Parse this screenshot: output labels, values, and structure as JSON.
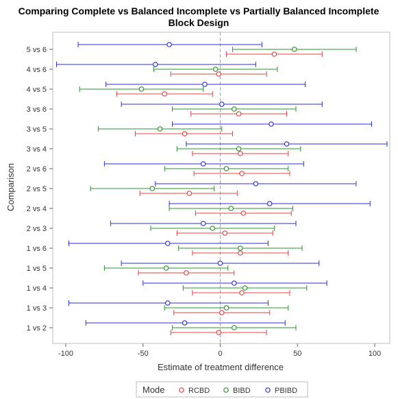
{
  "chart_data": {
    "type": "scatter",
    "title_line1": "Comparing Complete vs Balanced Incomplete vs Partially Balanced Incomplete",
    "title_line2": "Block Design",
    "xlabel": "Estimate of treatment difference",
    "ylabel": "Comparison",
    "xlim": [
      -110,
      110
    ],
    "x_ticks": [
      -100,
      -50,
      0,
      50,
      100
    ],
    "reference_line": 0,
    "categories": [
      "1 vs 2",
      "1 vs 3",
      "1 vs 4",
      "1 vs 5",
      "1 vs 6",
      "2 vs 3",
      "2 vs 4",
      "2 vs 5",
      "2 vs 6",
      "3 vs 4",
      "3 vs 5",
      "3 vs 6",
      "4 vs 5",
      "4 vs 6",
      "5 vs 6"
    ],
    "legend": {
      "title": "Mode",
      "placement": "bottom"
    },
    "series": [
      {
        "name": "RCBD",
        "color": "#e8403f",
        "estimate": [
          -1,
          1,
          14,
          -22,
          13,
          3,
          15,
          -20,
          14,
          13,
          -23,
          12,
          -36,
          -1,
          35
        ],
        "lower": [
          -32,
          -30,
          -18,
          -53,
          -18,
          -28,
          -16,
          -52,
          -17,
          -18,
          -55,
          -19,
          -67,
          -32,
          4
        ],
        "upper": [
          30,
          32,
          45,
          9,
          44,
          34,
          46,
          11,
          45,
          44,
          8,
          43,
          -5,
          30,
          66
        ]
      },
      {
        "name": "BIBD",
        "color": "#27932a",
        "estimate": [
          9,
          4,
          16,
          -35,
          13,
          -5,
          7,
          -44,
          4,
          12,
          -39,
          9,
          -51,
          -3,
          48
        ],
        "lower": [
          -31,
          -36,
          -24,
          -75,
          -27,
          -45,
          -33,
          -84,
          -36,
          -28,
          -79,
          -31,
          -91,
          -43,
          8
        ],
        "upper": [
          49,
          44,
          56,
          5,
          53,
          35,
          47,
          -4,
          44,
          52,
          1,
          49,
          -11,
          37,
          88
        ]
      },
      {
        "name": "PBIBD",
        "color": "#2a2ed8",
        "estimate": [
          -23,
          -34,
          9,
          0,
          -34,
          -11,
          32,
          23,
          -11,
          43,
          33,
          1,
          -10,
          -42,
          -33
        ],
        "lower": [
          -87,
          -98,
          -50,
          -64,
          -98,
          -71,
          -33,
          -42,
          -75,
          -22,
          -31,
          -64,
          -74,
          -106,
          -92
        ],
        "upper": [
          42,
          31,
          69,
          64,
          31,
          49,
          97,
          88,
          54,
          108,
          98,
          66,
          55,
          23,
          27
        ]
      }
    ]
  }
}
